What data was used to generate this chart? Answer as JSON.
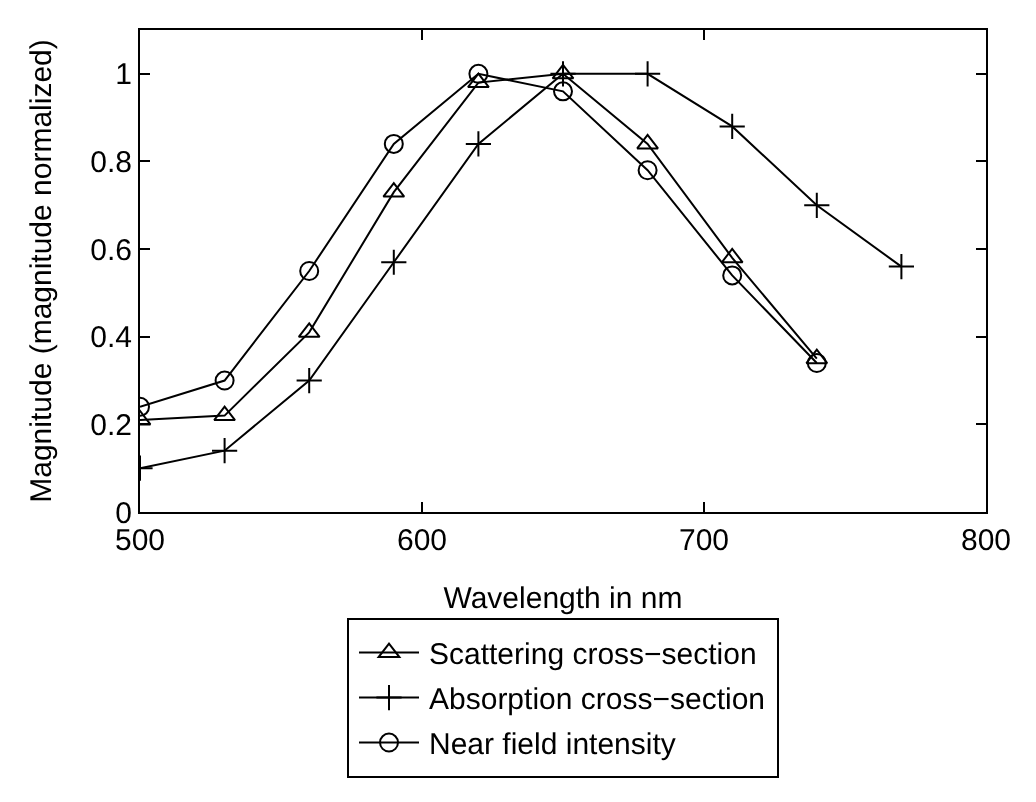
{
  "chart_data": {
    "type": "line",
    "xlabel": "Wavelength in nm",
    "ylabel": "Magnitude (magnitude normalized)",
    "xlim": [
      500,
      800
    ],
    "xticks": [
      500,
      600,
      700,
      800
    ],
    "ylim": [
      0,
      1.1
    ],
    "yticks": [
      0,
      0.2,
      0.4,
      0.6,
      0.8,
      1
    ],
    "legend": "bottom",
    "line_style": "solid",
    "series": [
      {
        "name": "Scattering cross−section",
        "color": "#000000",
        "marker": "triangle",
        "x": [
          500,
          530,
          560,
          590,
          620,
          650,
          680,
          710,
          740
        ],
        "values": [
          0.21,
          0.22,
          0.41,
          0.73,
          0.98,
          1.0,
          0.84,
          0.58,
          0.35
        ]
      },
      {
        "name": "Absorption cross−section",
        "color": "#000000",
        "marker": "cross",
        "x": [
          500,
          530,
          560,
          590,
          620,
          650,
          680,
          710,
          740,
          770
        ],
        "values": [
          0.1,
          0.14,
          0.3,
          0.57,
          0.84,
          1.0,
          1.0,
          0.88,
          0.7,
          0.56
        ]
      },
      {
        "name": "Near field intensity",
        "color": "#000000",
        "marker": "circle",
        "x": [
          500,
          530,
          560,
          590,
          620,
          650,
          680,
          710,
          740
        ],
        "values": [
          0.24,
          0.3,
          0.55,
          0.84,
          1.0,
          0.96,
          0.78,
          0.54,
          0.34
        ]
      }
    ]
  }
}
